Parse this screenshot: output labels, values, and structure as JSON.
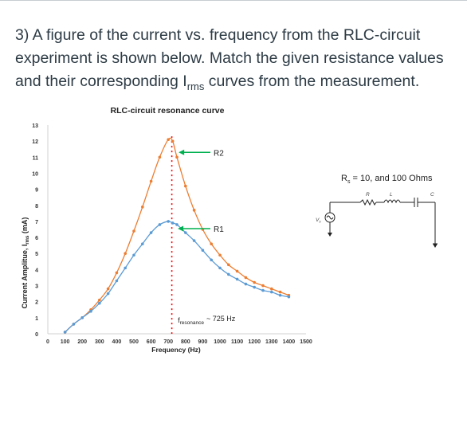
{
  "question": {
    "text_before": "3) A figure of the current vs. frequency from the RLC-circuit experiment is shown below. Match the given resistance values and their corresponding I",
    "subscript": "rms",
    "text_after": " curves from the measurement."
  },
  "chart_data": {
    "type": "line",
    "title": "RLC-circuit resonance curve",
    "xlabel": "Frequency (Hz)",
    "ylabel": "Current Amplitue, I",
    "ylabel_sub": "rms",
    "ylabel_unit": " (mA)",
    "xlim": [
      0,
      1500
    ],
    "ylim": [
      0,
      13
    ],
    "xticks": [
      0,
      100,
      200,
      300,
      400,
      500,
      600,
      700,
      800,
      900,
      1000,
      1100,
      1200,
      1300,
      1400,
      1500
    ],
    "yticks": [
      0,
      1,
      2,
      3,
      4,
      5,
      6,
      7,
      8,
      9,
      10,
      11,
      12,
      13
    ],
    "series": [
      {
        "name": "R2",
        "color": "#ed7d31",
        "x": [
          100,
          150,
          200,
          250,
          300,
          350,
          400,
          450,
          500,
          550,
          600,
          650,
          700,
          725,
          750,
          800,
          850,
          900,
          950,
          1000,
          1050,
          1100,
          1150,
          1200,
          1250,
          1300,
          1350,
          1400
        ],
        "y": [
          0.1,
          0.6,
          1.0,
          1.5,
          2.1,
          2.8,
          3.8,
          5.0,
          6.4,
          7.9,
          9.5,
          11.0,
          12.1,
          12.0,
          11.0,
          9.2,
          7.7,
          6.5,
          5.6,
          4.9,
          4.3,
          3.9,
          3.5,
          3.2,
          3.0,
          2.8,
          2.6,
          2.4
        ]
      },
      {
        "name": "R1",
        "color": "#5b9bd5",
        "x": [
          100,
          150,
          200,
          250,
          300,
          350,
          400,
          450,
          500,
          550,
          600,
          650,
          700,
          725,
          750,
          800,
          850,
          900,
          950,
          1000,
          1050,
          1100,
          1150,
          1200,
          1250,
          1300,
          1350,
          1400
        ],
        "y": [
          0.1,
          0.6,
          1.0,
          1.4,
          1.9,
          2.5,
          3.3,
          4.1,
          4.9,
          5.6,
          6.3,
          6.8,
          7.0,
          6.9,
          6.8,
          6.3,
          5.8,
          5.2,
          4.6,
          4.1,
          3.7,
          3.4,
          3.1,
          2.9,
          2.7,
          2.6,
          2.4,
          2.3
        ]
      }
    ],
    "annotations": {
      "resonance_label": "f",
      "resonance_sub": "resonance",
      "resonance_value": "~ 725 Hz",
      "resonance_x": 725,
      "r2_label": "R2",
      "r1_label": "R1",
      "arrow_color": "#00b050",
      "marker_color": "#ff0000"
    }
  },
  "circuit": {
    "label": "R",
    "label_sub": "s",
    "label_rest": " = 10, and 100 Ohms",
    "r_symbol": "R",
    "l_symbol": "L",
    "c_symbol": "C",
    "source_symbol": "V",
    "source_sub": "s"
  }
}
